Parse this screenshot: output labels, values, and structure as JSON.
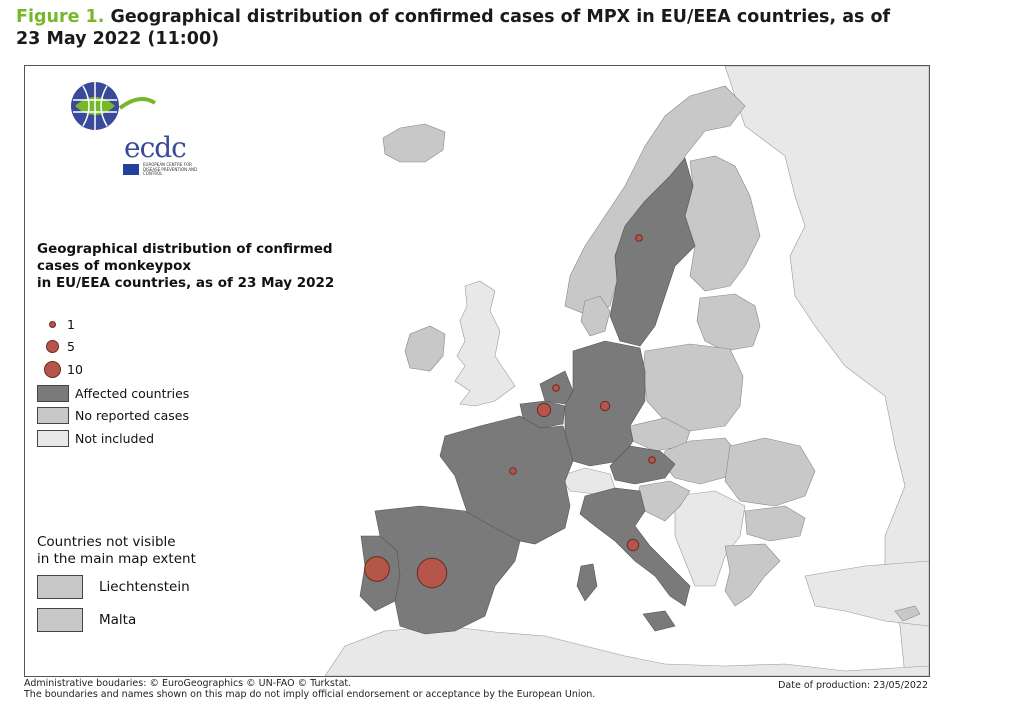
{
  "figure": {
    "number": "Figure 1.",
    "title": "Geographical distribution of confirmed cases of MPX in EU/EEA countries, as of 23 May 2022 (11:00)"
  },
  "legend": {
    "title_line1": "Geographical distribution of confirmed",
    "title_line2": "cases of monkeypox",
    "title_line3": "in EU/EEA countries, as of 23 May 2022",
    "sizes": [
      {
        "value": 1,
        "label": "1"
      },
      {
        "value": 5,
        "label": "5"
      },
      {
        "value": 10,
        "label": "10"
      }
    ],
    "categories": [
      {
        "label": "Affected countries",
        "color": "#7a7a7a"
      },
      {
        "label": "No reported cases",
        "color": "#c8c8c8"
      },
      {
        "label": "Not included",
        "color": "#e8e8e8"
      }
    ]
  },
  "not_visible": {
    "title_line1": "Countries not visible",
    "title_line2": "in the main map extent",
    "countries": [
      "Liechtenstein",
      "Malta"
    ]
  },
  "logo": {
    "text": "ecdc",
    "subtext": "EUROPEAN CENTRE FOR DISEASE PREVENTION AND CONTROL"
  },
  "footer": {
    "line1": "Administrative boudaries: © EuroGeographics © UN-FAO © Turkstat.",
    "line2": "The boundaries and names shown on this map do not imply official endorsement or acceptance by the European Union.",
    "production": "Date of production: 23/05/2022"
  },
  "map_data": {
    "bubbles": [
      {
        "name": "Portugal",
        "cases": 14
      },
      {
        "name": "Spain",
        "cases": 20
      },
      {
        "name": "Sweden",
        "cases": 1
      },
      {
        "name": "Netherlands",
        "cases": 1
      },
      {
        "name": "Belgium",
        "cases": 4
      },
      {
        "name": "Germany",
        "cases": 2
      },
      {
        "name": "France",
        "cases": 1
      },
      {
        "name": "Austria",
        "cases": 1
      },
      {
        "name": "Italy",
        "cases": 3
      }
    ]
  },
  "colors": {
    "affected": "#7a7a7a",
    "no_cases": "#c8c8c8",
    "not_included": "#e8e8e8",
    "bubble": "#b5564a",
    "bubble_stroke": "#6b2a22",
    "title_accent": "#76b82a",
    "logo_blue": "#3a4a9a",
    "logo_green": "#76b82a"
  }
}
